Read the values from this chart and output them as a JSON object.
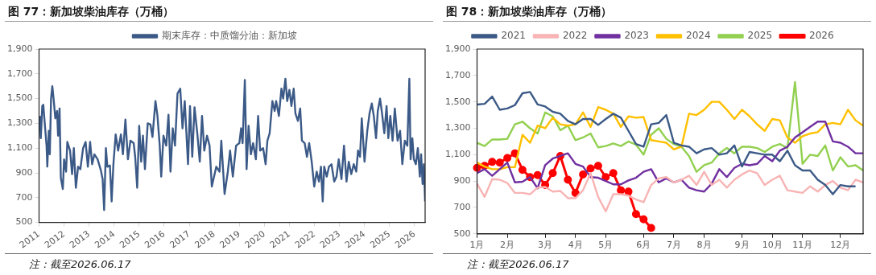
{
  "chart_data": [
    {
      "type": "line",
      "title": "图 77：新加坡柴油库存（万桶）",
      "annotations": [
        "注：截至2026.06.17"
      ],
      "legend": "top",
      "grid": false,
      "marker": "none",
      "line_style": "solid",
      "x": [
        2011.03,
        2011.07,
        2011.13,
        2011.17,
        2011.22,
        2011.3,
        2011.33,
        2011.39,
        2011.43,
        2011.48,
        2011.53,
        2011.59,
        2011.65,
        2011.72,
        2011.76,
        2011.82,
        2011.87,
        2011.95,
        2012.0,
        2012.08,
        2012.13,
        2012.24,
        2012.32,
        2012.39,
        2012.47,
        2012.56,
        2012.65,
        2012.76,
        2012.86,
        2012.95,
        2013.04,
        2013.12,
        2013.21,
        2013.34,
        2013.47,
        2013.54,
        2013.6,
        2013.67,
        2013.73,
        2013.83,
        2013.9,
        2013.97,
        2014.06,
        2014.16,
        2014.27,
        2014.35,
        2014.45,
        2014.55,
        2014.65,
        2014.78,
        2014.84,
        2014.92,
        2015.0,
        2015.08,
        2015.15,
        2015.23,
        2015.34,
        2015.45,
        2015.53,
        2015.65,
        2015.73,
        2015.82,
        2015.88,
        2015.97,
        2016.08,
        2016.17,
        2016.25,
        2016.34,
        2016.43,
        2016.53,
        2016.64,
        2016.73,
        2016.82,
        2016.95,
        2017.03,
        2017.12,
        2017.21,
        2017.32,
        2017.42,
        2017.51,
        2017.6,
        2017.71,
        2017.81,
        2017.9,
        2018.08,
        2018.21,
        2018.28,
        2018.41,
        2018.54,
        2018.63,
        2018.74,
        2018.87,
        2019.0,
        2019.07,
        2019.13,
        2019.22,
        2019.29,
        2019.37,
        2019.46,
        2019.55,
        2019.66,
        2019.75,
        2019.83,
        2019.95,
        2020.05,
        2020.12,
        2020.21,
        2020.32,
        2020.41,
        2020.47,
        2020.58,
        2020.68,
        2020.75,
        2020.84,
        2020.91,
        2021.0,
        2021.08,
        2021.17,
        2021.24,
        2021.34,
        2021.43,
        2021.5,
        2021.61,
        2021.7,
        2021.79,
        2021.89,
        2021.99,
        2022.09,
        2022.18,
        2022.26,
        2022.33,
        2022.39,
        2022.49,
        2022.58,
        2022.68,
        2022.79,
        2022.88,
        2022.97,
        2023.08,
        2023.18,
        2023.28,
        2023.37,
        2023.47,
        2023.57,
        2023.67,
        2023.74,
        2023.82,
        2023.89,
        2024.0,
        2024.11,
        2024.2,
        2024.29,
        2024.37,
        2024.46,
        2024.53,
        2024.62,
        2024.7,
        2024.79,
        2024.88,
        2024.95,
        2025.03,
        2025.12,
        2025.21,
        2025.32,
        2025.42,
        2025.51,
        2025.61,
        2025.71,
        2025.79,
        2025.84,
        2025.91,
        2025.97,
        2026.05,
        2026.13,
        2026.21,
        2026.26,
        2026.32,
        2026.37,
        2026.42
      ],
      "xlim": [
        2011,
        2026.42
      ],
      "xticks": [
        2011,
        2012,
        2013,
        2014,
        2015,
        2016,
        2017,
        2018,
        2019,
        2020,
        2021,
        2022,
        2023,
        2024,
        2025,
        2026
      ],
      "ylim": [
        500,
        1900
      ],
      "yticks": [
        500,
        700,
        900,
        {
          "value": 1100,
          "label": "1,100"
        },
        {
          "value": 1300,
          "label": "1,300"
        },
        {
          "value": 1500,
          "label": "1,500"
        },
        {
          "value": 1700,
          "label": "1,700"
        },
        {
          "value": 1900,
          "label": "1,900"
        }
      ],
      "series": [
        {
          "name": "期末库存：中质馏分油：新加坡",
          "color": "#3c5a87",
          "values": [
            1360,
            1180,
            1440,
            1450,
            1320,
            1120,
            950,
            1240,
            1050,
            1500,
            1600,
            1480,
            1340,
            1400,
            1200,
            1420,
            860,
            770,
            1010,
            910,
            1150,
            1080,
            890,
            1100,
            780,
            950,
            930,
            1100,
            1150,
            950,
            1150,
            970,
            1050,
            1010,
            920,
            850,
            600,
            1100,
            950,
            960,
            670,
            970,
            1210,
            1080,
            1210,
            1050,
            1330,
            1010,
            1160,
            1140,
            1030,
            780,
            1280,
            990,
            1200,
            930,
            1300,
            1290,
            1190,
            1480,
            1360,
            1120,
            870,
            1200,
            1120,
            1370,
            910,
            1260,
            1120,
            1540,
            1580,
            1260,
            1480,
            970,
            1440,
            1030,
            1430,
            1220,
            990,
            1360,
            1080,
            1200,
            1120,
            790,
            950,
            910,
            1160,
            730,
            910,
            1080,
            870,
            1120,
            1140,
            1260,
            1140,
            1650,
            930,
            1280,
            1050,
            1140,
            1010,
            1360,
            1080,
            1100,
            970,
            1160,
            1220,
            1480,
            1400,
            1480,
            1360,
            1580,
            1500,
            1660,
            1480,
            1570,
            1440,
            1580,
            1380,
            1320,
            1420,
            1160,
            1140,
            1030,
            1140,
            990,
            790,
            910,
            830,
            950,
            670,
            950,
            870,
            950,
            970,
            830,
            870,
            1010,
            850,
            1120,
            830,
            990,
            890,
            970,
            910,
            1080,
            1030,
            1340,
            990,
            1240,
            1380,
            1460,
            1360,
            1180,
            1400,
            1500,
            1380,
            1220,
            1440,
            1180,
            1360,
            1160,
            1420,
            1160,
            1240,
            970,
            1160,
            1120,
            1660,
            1010,
            1180,
            1010,
            970,
            1100,
            870,
            1050,
            810,
            970,
            670
          ]
        }
      ]
    },
    {
      "type": "line",
      "title": "图 78：新加坡柴油库存（万桶）",
      "annotations": [
        "注：截至2026.06.17"
      ],
      "legend": "top",
      "grid": false,
      "marker": "none",
      "line_style": "solid",
      "categories": [
        "1月",
        null,
        null,
        null,
        "2月",
        null,
        null,
        null,
        null,
        "3月",
        null,
        null,
        null,
        "4月",
        null,
        null,
        null,
        "5月",
        null,
        null,
        null,
        null,
        "6月",
        null,
        null,
        null,
        "7月",
        null,
        null,
        null,
        "8月",
        null,
        null,
        null,
        null,
        "9月",
        null,
        null,
        null,
        "10月",
        null,
        null,
        null,
        "11月",
        null,
        null,
        null,
        null,
        "12月",
        null,
        null,
        null
      ],
      "ylim": [
        500,
        1900
      ],
      "yticks": [
        500,
        700,
        900,
        {
          "value": 1100,
          "label": "1,100"
        },
        {
          "value": 1300,
          "label": "1,300"
        },
        {
          "value": 1500,
          "label": "1,500"
        },
        {
          "value": 1700,
          "label": "1,700"
        },
        {
          "value": 1900,
          "label": "1,900"
        }
      ],
      "series": [
        {
          "name": "2021",
          "color": "#3c5a87",
          "values": [
            1480,
            1485,
            1540,
            1440,
            1450,
            1475,
            1565,
            1575,
            1480,
            1465,
            1425,
            1410,
            1355,
            1330,
            1370,
            1370,
            1325,
            1370,
            1410,
            1380,
            1280,
            1180,
            1160,
            1330,
            1340,
            1400,
            1190,
            1170,
            1160,
            1110,
            1140,
            1150,
            1100,
            1110,
            1170,
            1010,
            1120,
            1110,
            1100,
            1100,
            1050,
            1130,
            1020,
            980,
            980,
            910,
            870,
            800,
            870,
            860,
            860,
            null
          ]
        },
        {
          "name": "2022",
          "color": "#f8b4b4",
          "values": [
            880,
            780,
            915,
            910,
            885,
            810,
            810,
            800,
            850,
            855,
            820,
            825,
            770,
            770,
            830,
            960,
            780,
            670,
            800,
            800,
            790,
            760,
            740,
            870,
            920,
            930,
            890,
            910,
            940,
            870,
            970,
            870,
            910,
            850,
            910,
            950,
            980,
            960,
            870,
            910,
            940,
            830,
            820,
            810,
            860,
            820,
            870,
            900,
            850,
            830,
            910,
            890
          ]
        },
        {
          "name": "2023",
          "color": "#7030a0",
          "values": [
            960,
            990,
            940,
            990,
            1040,
            890,
            895,
            930,
            845,
            1020,
            1070,
            1090,
            1110,
            1030,
            1010,
            930,
            925,
            900,
            875,
            875,
            905,
            925,
            970,
            990,
            890,
            920,
            890,
            910,
            850,
            830,
            820,
            880,
            990,
            930,
            1000,
            1030,
            1020,
            1030,
            1090,
            1050,
            1130,
            1160,
            1230,
            1270,
            1310,
            1350,
            1350,
            1200,
            1190,
            1160,
            1110,
            1110
          ]
        },
        {
          "name": "2024",
          "color": "#ffc000",
          "values": [
            1040,
            1010,
            990,
            990,
            1005,
            1005,
            1250,
            1190,
            1320,
            1300,
            1380,
            1330,
            1320,
            1330,
            1420,
            1310,
            1460,
            1440,
            1410,
            1310,
            1390,
            1380,
            1385,
            1210,
            1200,
            1190,
            1140,
            1160,
            1410,
            1400,
            1440,
            1500,
            1500,
            1440,
            1370,
            1440,
            1390,
            1330,
            1280,
            1370,
            1360,
            1230,
            1190,
            1240,
            1260,
            1270,
            1330,
            1340,
            1330,
            1440,
            1360,
            1320
          ]
        },
        {
          "name": "2025",
          "color": "#92d050",
          "values": [
            1190,
            1165,
            1215,
            1215,
            1220,
            1330,
            1350,
            1300,
            1260,
            1420,
            1390,
            1285,
            1320,
            1210,
            1230,
            1260,
            1155,
            1165,
            1185,
            1165,
            1200,
            1175,
            1100,
            1250,
            1300,
            1220,
            1180,
            1160,
            1090,
            970,
            1020,
            1040,
            1110,
            1150,
            1110,
            1160,
            1160,
            1150,
            1120,
            1160,
            1180,
            1150,
            1650,
            1030,
            1100,
            1090,
            1170,
            980,
            1080,
            1010,
            1020,
            980
          ]
        },
        {
          "name": "2026",
          "color": "#ff0000",
          "marker": "circle",
          "values": [
            1000,
            1015,
            1045,
            1040,
            1075,
            1110,
            985,
            930,
            945,
            870,
            960,
            1090,
            910,
            810,
            950,
            995,
            1015,
            930,
            960,
            830,
            820,
            650,
            610,
            545,
            null,
            null,
            null,
            null,
            null,
            null,
            null,
            null,
            null,
            null,
            null,
            null,
            null,
            null,
            null,
            null,
            null,
            null,
            null,
            null,
            null,
            null,
            null,
            null,
            null,
            null,
            null,
            null
          ]
        }
      ]
    }
  ]
}
